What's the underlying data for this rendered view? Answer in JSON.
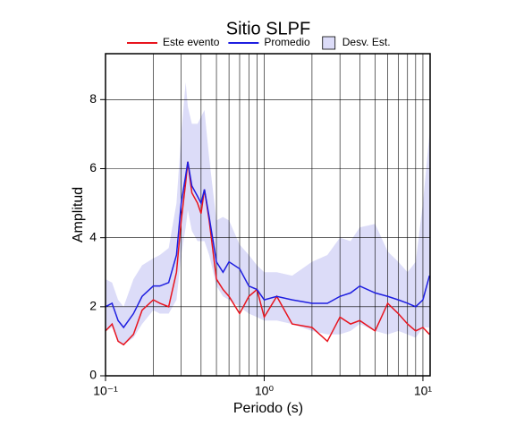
{
  "chart_data": {
    "type": "line",
    "title": "Sitio SLPF",
    "x_label": "Periodo (s)",
    "y_label": "Amplitud",
    "x_scale": "log",
    "grid": true,
    "legend": "top",
    "xlim": [
      0.1,
      11.1
    ],
    "ylim": [
      0,
      9.33
    ],
    "xticks": [
      {
        "value": 0.1,
        "label": "10⁻¹"
      },
      {
        "value": 1,
        "label": "10⁰"
      },
      {
        "value": 10,
        "label": "10¹"
      }
    ],
    "xminorticks": [
      0.2,
      0.3,
      0.4,
      0.5,
      0.6,
      0.7,
      0.8,
      0.9,
      2,
      3,
      4,
      5,
      6,
      7,
      8,
      9
    ],
    "yticks": [
      0,
      2,
      4,
      6,
      8
    ],
    "x": [
      0.1,
      0.11,
      0.12,
      0.13,
      0.15,
      0.17,
      0.2,
      0.22,
      0.25,
      0.28,
      0.3,
      0.32,
      0.33,
      0.35,
      0.38,
      0.4,
      0.42,
      0.45,
      0.5,
      0.55,
      0.6,
      0.7,
      0.8,
      0.9,
      1,
      1.2,
      1.5,
      2,
      2.5,
      3,
      3.5,
      4,
      5,
      6,
      7,
      8,
      9,
      10,
      11
    ],
    "band": {
      "name": "Desv. Est.",
      "color": "#dcdcf8",
      "upper": [
        2.8,
        2.7,
        2.2,
        2.0,
        2.8,
        3.2,
        3.4,
        3.5,
        3.7,
        5.0,
        7.0,
        8.5,
        7.8,
        7.3,
        7.3,
        7.5,
        7.7,
        6.3,
        4.5,
        4.6,
        4.5,
        3.8,
        3.5,
        3.2,
        3.0,
        3.0,
        2.9,
        3.3,
        3.5,
        4.0,
        3.9,
        4.3,
        4.4,
        3.6,
        3.3,
        3.0,
        3.3,
        5.0,
        7.0
      ],
      "lower": [
        1.3,
        1.4,
        1.0,
        0.9,
        1.1,
        1.5,
        1.9,
        1.8,
        1.8,
        2.2,
        3.5,
        4.3,
        4.8,
        4.2,
        3.9,
        3.9,
        3.9,
        3.5,
        2.6,
        2.3,
        2.2,
        2.0,
        1.8,
        1.7,
        1.6,
        1.6,
        1.5,
        1.3,
        1.2,
        1.2,
        1.3,
        1.5,
        1.3,
        1.2,
        1.3,
        1.2,
        1.1,
        1.4,
        1.4
      ]
    },
    "series": [
      {
        "name": "Este evento",
        "color": "#e8141e",
        "values": [
          1.3,
          1.5,
          1.0,
          0.9,
          1.2,
          1.9,
          2.2,
          2.1,
          2.0,
          3.0,
          4.5,
          5.6,
          6.2,
          5.3,
          5.0,
          4.7,
          5.4,
          4.5,
          2.8,
          2.5,
          2.3,
          1.8,
          2.3,
          2.5,
          1.7,
          2.3,
          1.5,
          1.4,
          1.0,
          1.7,
          1.5,
          1.6,
          1.3,
          2.1,
          1.8,
          1.5,
          1.3,
          1.4,
          1.2
        ]
      },
      {
        "name": "Promedio",
        "color": "#1e1ee0",
        "values": [
          2.0,
          2.1,
          1.6,
          1.4,
          1.8,
          2.3,
          2.6,
          2.6,
          2.7,
          3.5,
          5.0,
          5.8,
          6.2,
          5.5,
          5.2,
          5.0,
          5.4,
          4.6,
          3.3,
          3.0,
          3.3,
          3.1,
          2.6,
          2.5,
          2.2,
          2.3,
          2.2,
          2.1,
          2.1,
          2.3,
          2.4,
          2.6,
          2.4,
          2.3,
          2.2,
          2.1,
          2.0,
          2.2,
          2.9
        ]
      }
    ]
  }
}
